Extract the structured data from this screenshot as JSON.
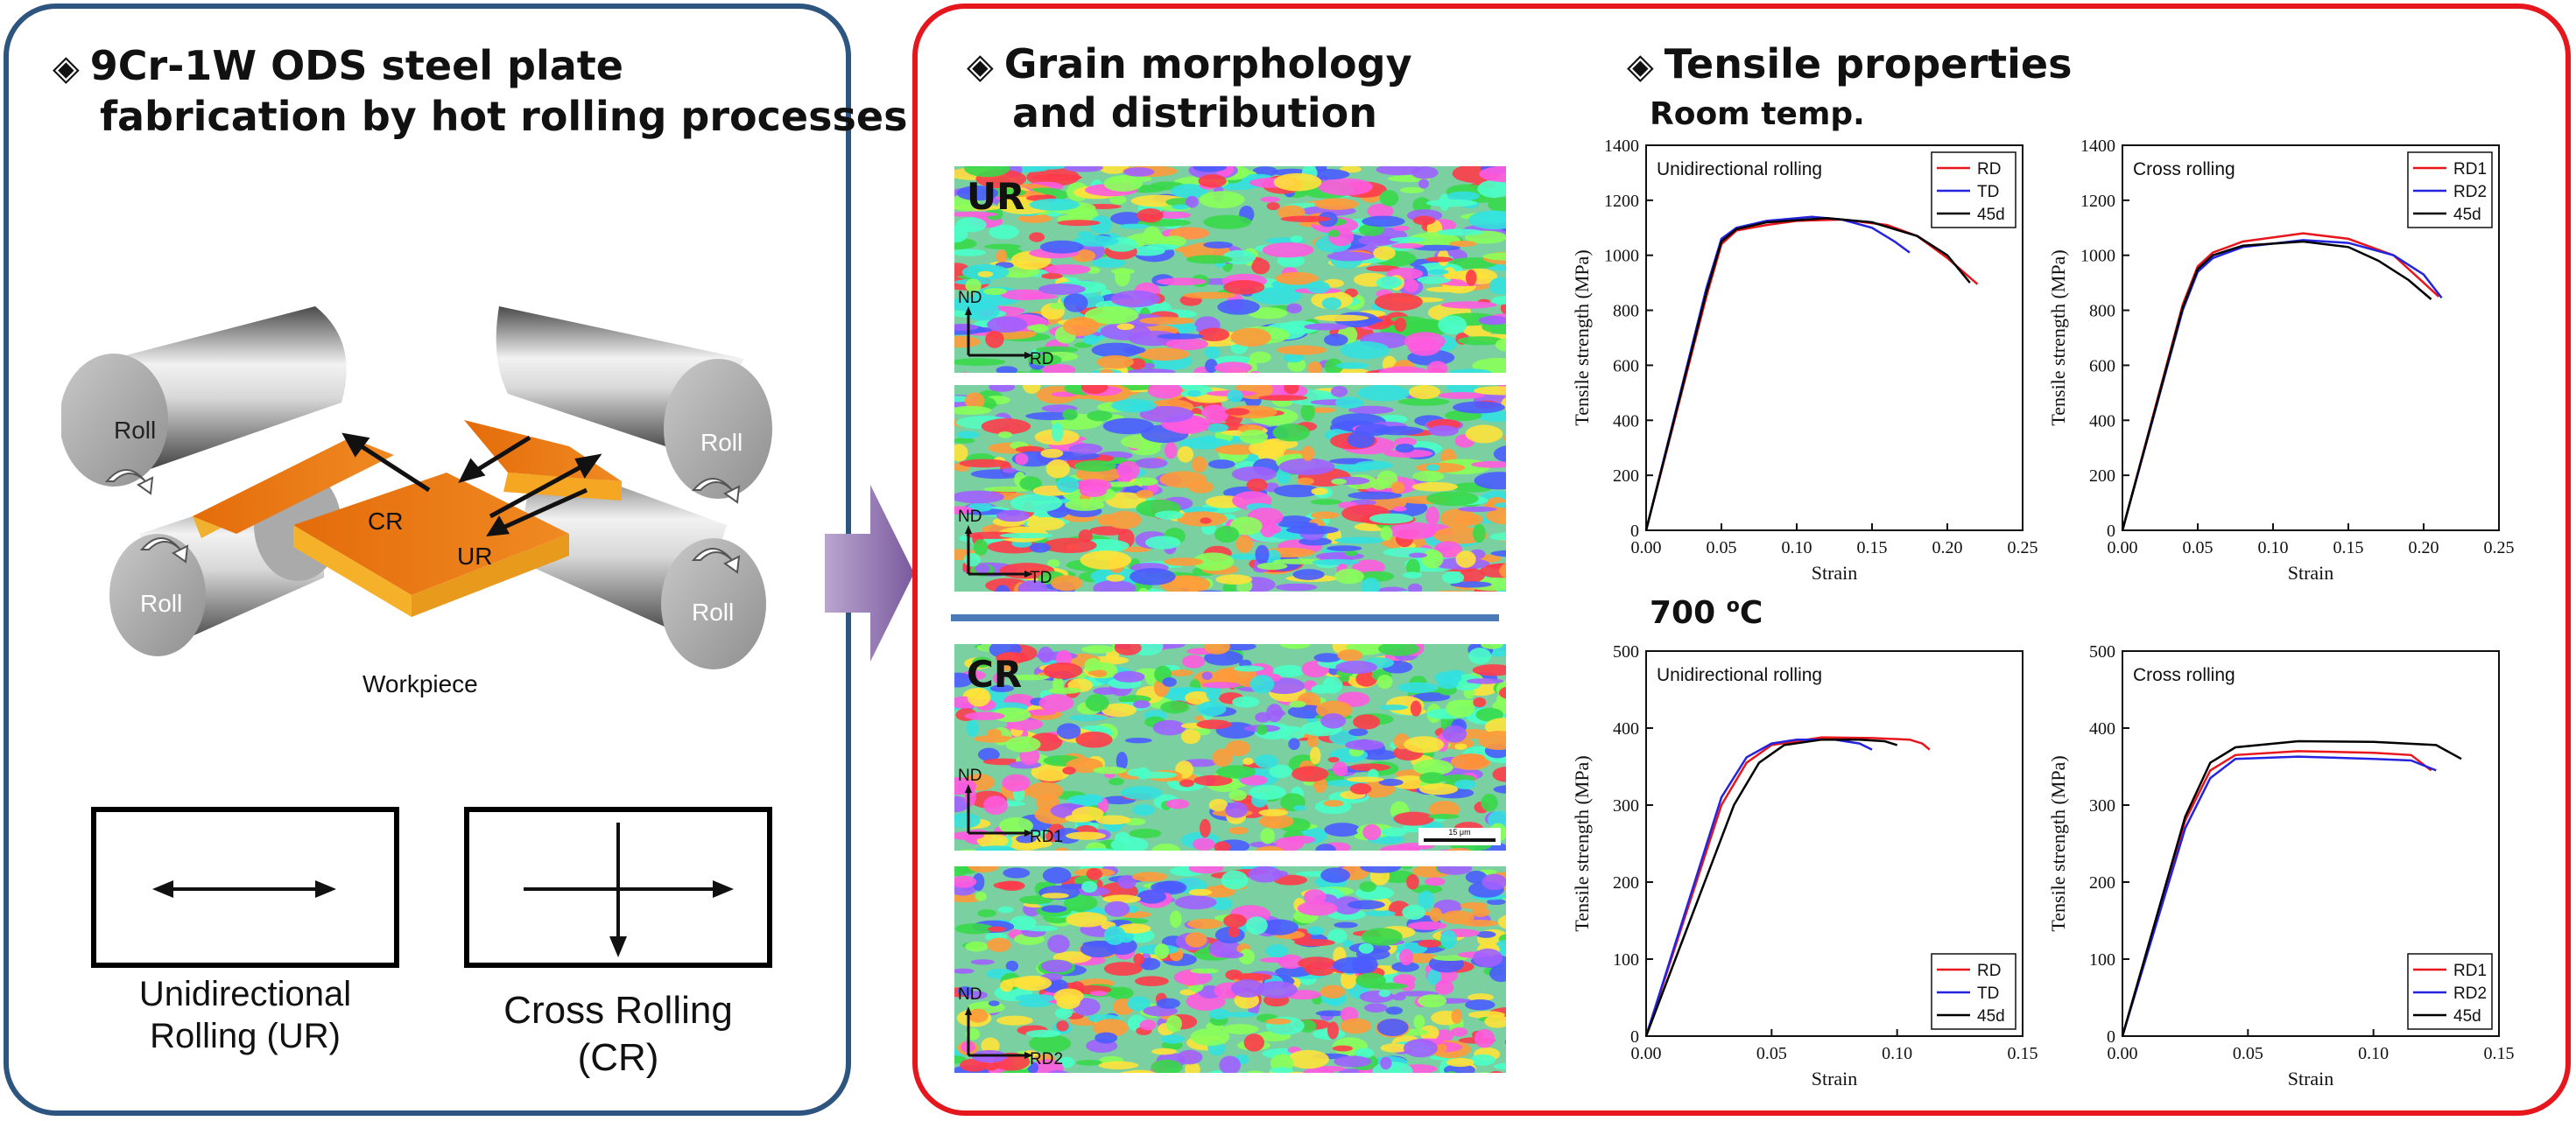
{
  "left": {
    "heading_line1": "9Cr-1W ODS steel plate",
    "heading_line2": "fabrication by hot rolling processes",
    "roll_label": "Roll",
    "cr_label": "CR",
    "ur_label": "UR",
    "workpiece_label": "Workpiece",
    "ur_caption_line1": "Unidirectional",
    "ur_caption_line2": "Rolling (UR)",
    "cr_caption_line1": "Cross Rolling",
    "cr_caption_line2": "(CR)"
  },
  "grain": {
    "heading_line1": "Grain morphology",
    "heading_line2": "and distribution",
    "ur_tag": "UR",
    "cr_tag": "CR",
    "nd": "ND",
    "rd": "RD",
    "td": "TD",
    "rd1": "RD1",
    "rd2": "RD2",
    "scale_bar": "15 μm"
  },
  "tensile": {
    "heading": "Tensile properties",
    "room_temp": "Room temp.",
    "high_temp_num": "700 ",
    "high_temp_sup": "o",
    "high_temp_unit": "C"
  },
  "colors": {
    "left_border": "#2e5480",
    "right_border": "#e5161c",
    "workpiece": "#e8720c",
    "arrow": "#8a6aa8"
  },
  "chart_data": [
    {
      "type": "line",
      "title": "Unidirectional rolling",
      "xlabel": "Strain",
      "ylabel": "Tensile strength (MPa)",
      "xlim": [
        0,
        0.25
      ],
      "ylim": [
        0,
        1400
      ],
      "xticks": [
        "0.00",
        "0.05",
        "0.10",
        "0.15",
        "0.20",
        "0.25"
      ],
      "yticks": [
        "0",
        "200",
        "400",
        "600",
        "800",
        "1000",
        "1200",
        "1400"
      ],
      "legend_position": "top-right",
      "series": [
        {
          "name": "RD",
          "color": "#e8161c",
          "points": [
            [
              0,
              0
            ],
            [
              0.04,
              850
            ],
            [
              0.05,
              1040
            ],
            [
              0.06,
              1090
            ],
            [
              0.08,
              1110
            ],
            [
              0.1,
              1125
            ],
            [
              0.13,
              1130
            ],
            [
              0.16,
              1110
            ],
            [
              0.18,
              1070
            ],
            [
              0.2,
              990
            ],
            [
              0.22,
              895
            ]
          ]
        },
        {
          "name": "TD",
          "color": "#2424e0",
          "points": [
            [
              0,
              0
            ],
            [
              0.04,
              880
            ],
            [
              0.05,
              1060
            ],
            [
              0.06,
              1100
            ],
            [
              0.08,
              1125
            ],
            [
              0.11,
              1140
            ],
            [
              0.13,
              1130
            ],
            [
              0.15,
              1100
            ],
            [
              0.165,
              1050
            ],
            [
              0.175,
              1010
            ]
          ]
        },
        {
          "name": "45d",
          "color": "#000000",
          "points": [
            [
              0,
              0
            ],
            [
              0.04,
              865
            ],
            [
              0.05,
              1050
            ],
            [
              0.06,
              1095
            ],
            [
              0.08,
              1120
            ],
            [
              0.12,
              1135
            ],
            [
              0.15,
              1120
            ],
            [
              0.18,
              1070
            ],
            [
              0.2,
              1000
            ],
            [
              0.215,
              900
            ]
          ]
        }
      ]
    },
    {
      "type": "line",
      "title": "Cross rolling",
      "xlabel": "Strain",
      "ylabel": "Tensile strength (MPa)",
      "xlim": [
        0,
        0.25
      ],
      "ylim": [
        0,
        1400
      ],
      "xticks": [
        "0.00",
        "0.05",
        "0.10",
        "0.15",
        "0.20",
        "0.25"
      ],
      "yticks": [
        "0",
        "200",
        "400",
        "600",
        "800",
        "1000",
        "1200",
        "1400"
      ],
      "legend_position": "top-right",
      "series": [
        {
          "name": "RD1",
          "color": "#e8161c",
          "points": [
            [
              0,
              0
            ],
            [
              0.04,
              820
            ],
            [
              0.05,
              960
            ],
            [
              0.06,
              1010
            ],
            [
              0.08,
              1050
            ],
            [
              0.12,
              1080
            ],
            [
              0.15,
              1060
            ],
            [
              0.18,
              1000
            ],
            [
              0.2,
              900
            ],
            [
              0.21,
              850
            ]
          ]
        },
        {
          "name": "RD2",
          "color": "#2424e0",
          "points": [
            [
              0,
              0
            ],
            [
              0.04,
              800
            ],
            [
              0.05,
              940
            ],
            [
              0.06,
              990
            ],
            [
              0.08,
              1030
            ],
            [
              0.12,
              1055
            ],
            [
              0.15,
              1045
            ],
            [
              0.18,
              1000
            ],
            [
              0.2,
              930
            ],
            [
              0.212,
              845
            ]
          ]
        },
        {
          "name": "45d",
          "color": "#000000",
          "points": [
            [
              0,
              0
            ],
            [
              0.04,
              810
            ],
            [
              0.05,
              950
            ],
            [
              0.06,
              1000
            ],
            [
              0.08,
              1035
            ],
            [
              0.12,
              1050
            ],
            [
              0.15,
              1030
            ],
            [
              0.17,
              980
            ],
            [
              0.19,
              910
            ],
            [
              0.205,
              840
            ]
          ]
        }
      ]
    },
    {
      "type": "line",
      "title": "Unidirectional rolling",
      "xlabel": "Strain",
      "ylabel": "Tensile strength (MPa)",
      "xlim": [
        0,
        0.15
      ],
      "ylim": [
        0,
        500
      ],
      "xticks": [
        "0.00",
        "0.05",
        "0.10",
        "0.15"
      ],
      "yticks": [
        "0",
        "100",
        "200",
        "300",
        "400",
        "500"
      ],
      "legend_position": "bottom-right",
      "series": [
        {
          "name": "RD",
          "color": "#e8161c",
          "points": [
            [
              0,
              0
            ],
            [
              0.03,
              300
            ],
            [
              0.04,
              355
            ],
            [
              0.05,
              378
            ],
            [
              0.07,
              388
            ],
            [
              0.09,
              387
            ],
            [
              0.105,
              385
            ],
            [
              0.11,
              380
            ],
            [
              0.113,
              372
            ]
          ]
        },
        {
          "name": "TD",
          "color": "#2424e0",
          "points": [
            [
              0,
              0
            ],
            [
              0.03,
              310
            ],
            [
              0.04,
              362
            ],
            [
              0.05,
              380
            ],
            [
              0.06,
              385
            ],
            [
              0.075,
              385
            ],
            [
              0.085,
              380
            ],
            [
              0.09,
              372
            ]
          ]
        },
        {
          "name": "45d",
          "color": "#000000",
          "points": [
            [
              0,
              0
            ],
            [
              0.035,
              300
            ],
            [
              0.045,
              355
            ],
            [
              0.055,
              378
            ],
            [
              0.07,
              385
            ],
            [
              0.085,
              385
            ],
            [
              0.095,
              383
            ],
            [
              0.1,
              378
            ]
          ]
        }
      ]
    },
    {
      "type": "line",
      "title": "Cross rolling",
      "xlabel": "Strain",
      "ylabel": "Tensile strength (MPa)",
      "xlim": [
        0,
        0.15
      ],
      "ylim": [
        0,
        500
      ],
      "xticks": [
        "0.00",
        "0.05",
        "0.10",
        "0.15"
      ],
      "yticks": [
        "0",
        "100",
        "200",
        "300",
        "400",
        "500"
      ],
      "legend_position": "bottom-right",
      "series": [
        {
          "name": "RD1",
          "color": "#e8161c",
          "points": [
            [
              0,
              0
            ],
            [
              0.025,
              280
            ],
            [
              0.035,
              345
            ],
            [
              0.045,
              365
            ],
            [
              0.07,
              370
            ],
            [
              0.1,
              368
            ],
            [
              0.115,
              365
            ],
            [
              0.123,
              345
            ]
          ]
        },
        {
          "name": "RD2",
          "color": "#2424e0",
          "points": [
            [
              0,
              0
            ],
            [
              0.025,
              270
            ],
            [
              0.035,
              335
            ],
            [
              0.045,
              360
            ],
            [
              0.07,
              363
            ],
            [
              0.1,
              360
            ],
            [
              0.115,
              358
            ],
            [
              0.125,
              345
            ]
          ]
        },
        {
          "name": "45d",
          "color": "#000000",
          "points": [
            [
              0,
              0
            ],
            [
              0.025,
              285
            ],
            [
              0.035,
              355
            ],
            [
              0.045,
              375
            ],
            [
              0.07,
              383
            ],
            [
              0.1,
              382
            ],
            [
              0.125,
              378
            ],
            [
              0.135,
              360
            ]
          ]
        }
      ]
    }
  ]
}
